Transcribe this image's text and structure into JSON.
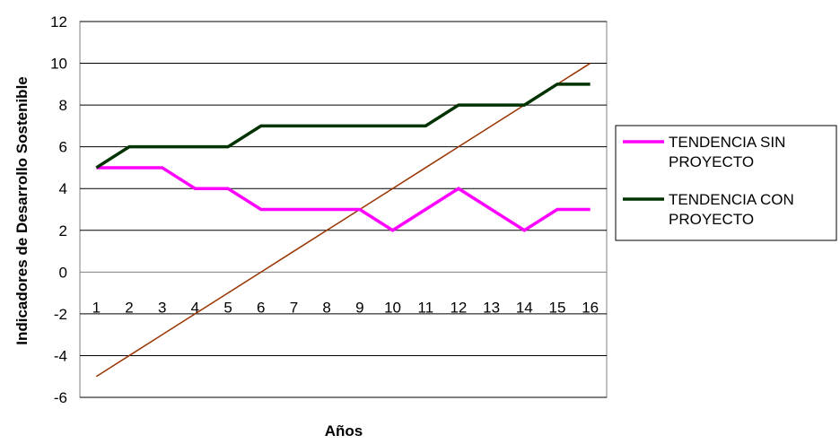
{
  "chart_data": {
    "type": "line",
    "title": "",
    "xlabel": "Años",
    "ylabel": "Indicadores de Desarrollo Sostenible",
    "ylim": [
      -6,
      12
    ],
    "y_ticks": [
      12,
      10,
      8,
      6,
      4,
      2,
      0,
      -2,
      -4,
      -6
    ],
    "x": [
      1,
      2,
      3,
      4,
      5,
      6,
      7,
      8,
      9,
      10,
      11,
      12,
      13,
      14,
      15,
      16
    ],
    "x_tick_labels": [
      "1",
      "2",
      "3",
      "4",
      "5",
      "6",
      "7",
      "8",
      "9",
      "10",
      "11",
      "12",
      "13",
      "14",
      "15",
      "16"
    ],
    "grid": "horizontal",
    "legend": "right",
    "series": [
      {
        "name": "TENDENCIA SIN PROYECTO",
        "name_lines": [
          "TENDENCIA SIN",
          "PROYECTO"
        ],
        "color": "#ff00ff",
        "values": [
          5,
          5,
          5,
          4,
          4,
          3,
          3,
          3,
          3,
          2,
          3,
          4,
          3,
          2,
          3,
          3
        ]
      },
      {
        "name": "TENDENCIA CON PROYECTO",
        "name_lines": [
          "TENDENCIA CON",
          "PROYECTO"
        ],
        "color": "#003300",
        "values": [
          5,
          6,
          6,
          6,
          6,
          7,
          7,
          7,
          7,
          7,
          7,
          8,
          8,
          8,
          9,
          9
        ]
      }
    ],
    "trendline": {
      "color": "#993300",
      "values": [
        -5,
        -4,
        -3,
        -2,
        -1,
        0,
        1,
        2,
        3,
        4,
        5,
        6,
        7,
        8,
        9,
        10
      ]
    }
  }
}
